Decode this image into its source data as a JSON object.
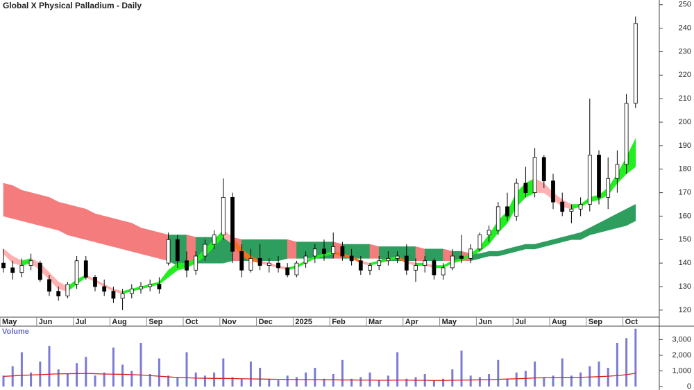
{
  "chart_data": {
    "type": "candlestick",
    "title": "Global X Physical Palladium - Daily",
    "categories": [
      "May",
      null,
      null,
      null,
      "Jun",
      null,
      null,
      null,
      "Jul",
      null,
      null,
      null,
      "Aug",
      null,
      null,
      null,
      "Sep",
      null,
      null,
      null,
      "Oct",
      null,
      null,
      null,
      "Nov",
      null,
      null,
      null,
      "Dec",
      null,
      null,
      null,
      "2025",
      null,
      null,
      null,
      "Feb",
      null,
      null,
      null,
      "Mar",
      null,
      null,
      null,
      "Apr",
      null,
      null,
      null,
      "May",
      null,
      null,
      null,
      "Jun",
      null,
      null,
      null,
      "Jul",
      null,
      null,
      null,
      "Aug",
      null,
      null,
      null,
      "Sep",
      null,
      null,
      null,
      "Oct",
      null
    ],
    "open": [
      140,
      138,
      136,
      139,
      140,
      133,
      128,
      126,
      131,
      141,
      134,
      130,
      128,
      125,
      127,
      129,
      130,
      131,
      140,
      150,
      141,
      137,
      143,
      148,
      152,
      168,
      145,
      137,
      142,
      139,
      140,
      138,
      135,
      140,
      143,
      146,
      144,
      147,
      143,
      141,
      137,
      139,
      141,
      142,
      143,
      137,
      139,
      141,
      135,
      138,
      143,
      142,
      146,
      152,
      154,
      164,
      160,
      174,
      170,
      185,
      175,
      166,
      162,
      163,
      165,
      186,
      168,
      176,
      182,
      208
    ],
    "high": [
      146,
      141,
      142,
      144,
      141,
      135,
      130,
      132,
      143,
      143,
      135,
      133,
      130,
      129,
      131,
      132,
      133,
      134,
      153,
      152,
      145,
      145,
      150,
      154,
      176,
      170,
      148,
      146,
      148,
      142,
      143,
      140,
      141,
      145,
      148,
      150,
      153,
      149,
      146,
      143,
      140,
      143,
      145,
      145,
      148,
      142,
      143,
      142,
      140,
      146,
      152,
      148,
      153,
      156,
      166,
      170,
      176,
      181,
      189,
      186,
      178,
      170,
      165,
      168,
      210,
      188,
      185,
      188,
      212,
      245
    ],
    "low": [
      136,
      133,
      134,
      137,
      132,
      126,
      124,
      125,
      129,
      133,
      128,
      126,
      123,
      120,
      125,
      127,
      128,
      127,
      139,
      138,
      134,
      135,
      141,
      146,
      150,
      140,
      134,
      136,
      137,
      136,
      136,
      134,
      134,
      138,
      140,
      141,
      142,
      141,
      139,
      135,
      135,
      137,
      139,
      140,
      135,
      132,
      136,
      133,
      133,
      137,
      140,
      140,
      145,
      149,
      152,
      158,
      158,
      168,
      168,
      172,
      163,
      160,
      157,
      160,
      162,
      165,
      163,
      170,
      178,
      206
    ],
    "close": [
      138,
      136,
      139,
      141,
      133,
      128,
      126,
      131,
      141,
      134,
      130,
      128,
      125,
      127,
      129,
      130,
      131,
      129,
      150,
      141,
      137,
      143,
      148,
      152,
      168,
      145,
      137,
      142,
      139,
      140,
      138,
      135,
      140,
      143,
      146,
      144,
      147,
      143,
      141,
      137,
      139,
      141,
      142,
      143,
      137,
      139,
      141,
      135,
      138,
      143,
      142,
      146,
      152,
      154,
      164,
      160,
      174,
      170,
      185,
      175,
      166,
      162,
      163,
      165,
      186,
      168,
      176,
      182,
      208,
      242
    ],
    "short_band_upper": [
      146,
      143,
      141,
      142,
      140,
      136,
      132,
      130,
      133,
      135,
      133,
      131,
      129,
      128,
      129,
      130,
      131,
      132,
      137,
      140,
      140,
      142,
      146,
      150,
      154,
      151,
      146,
      143,
      141,
      140,
      139,
      138,
      139,
      141,
      143,
      144,
      145,
      144,
      143,
      141,
      140,
      141,
      142,
      143,
      141,
      140,
      140,
      139,
      139,
      141,
      142,
      144,
      147,
      152,
      158,
      162,
      170,
      174,
      176,
      174,
      170,
      167,
      165,
      165,
      168,
      169,
      172,
      178,
      185,
      193
    ],
    "short_band_lower": [
      144,
      140,
      139,
      140,
      137,
      133,
      129,
      128,
      131,
      134,
      132,
      130,
      128,
      127,
      128,
      129,
      130,
      131,
      134,
      137,
      138,
      140,
      143,
      147,
      151,
      148,
      143,
      141,
      140,
      139,
      138,
      137,
      138,
      140,
      142,
      143,
      144,
      143,
      142,
      140,
      139,
      140,
      141,
      142,
      140,
      139,
      139,
      138,
      138,
      140,
      141,
      143,
      145,
      148,
      153,
      157,
      164,
      168,
      170,
      170,
      167,
      164,
      163,
      164,
      166,
      167,
      169,
      174,
      178,
      181
    ],
    "long_band_upper": [
      174,
      173,
      171,
      170,
      169,
      168,
      166,
      165,
      164,
      163,
      161,
      160,
      159,
      158,
      157,
      155,
      154,
      153,
      152,
      152,
      152,
      151,
      151,
      151,
      151,
      151,
      150,
      150,
      150,
      150,
      150,
      150,
      149,
      149,
      149,
      149,
      149,
      148,
      148,
      148,
      148,
      147,
      147,
      147,
      147,
      147,
      146,
      146,
      146,
      145,
      145,
      144,
      144,
      145,
      145,
      146,
      147,
      148,
      148,
      149,
      150,
      151,
      152,
      153,
      155,
      157,
      159,
      161,
      163,
      165
    ],
    "long_band_lower": [
      160,
      159,
      158,
      157,
      156,
      155,
      154,
      152,
      151,
      150,
      149,
      148,
      147,
      146,
      145,
      144,
      143,
      142,
      141,
      139,
      139,
      140,
      140,
      140,
      140,
      141,
      141,
      141,
      141,
      141,
      141,
      142,
      142,
      142,
      142,
      142,
      142,
      142,
      142,
      142,
      142,
      142,
      141,
      141,
      141,
      141,
      141,
      141,
      141,
      141,
      141,
      141,
      142,
      143,
      143,
      144,
      145,
      146,
      146,
      147,
      148,
      149,
      150,
      150,
      152,
      153,
      154,
      155,
      156,
      158
    ],
    "volume": [
      700,
      1300,
      2200,
      900,
      1600,
      2600,
      1100,
      800,
      1500,
      1900,
      700,
      900,
      2500,
      1400,
      1000,
      2800,
      800,
      1800,
      700,
      600,
      2200,
      900,
      700,
      900,
      1800,
      600,
      500,
      1600,
      1200,
      500,
      400,
      700,
      600,
      900,
      1200,
      500,
      800,
      1700,
      500,
      600,
      900,
      400,
      700,
      2200,
      500,
      600,
      800,
      400,
      500,
      1100,
      2300,
      700,
      600,
      800,
      1700,
      500,
      900,
      1000,
      1600,
      600,
      700,
      1800,
      700,
      900,
      1300,
      1600,
      1200,
      2800,
      3100,
      3700
    ],
    "volume_ma": [
      650,
      680,
      720,
      740,
      760,
      790,
      810,
      820,
      830,
      840,
      820,
      800,
      790,
      780,
      760,
      740,
      700,
      660,
      620,
      580,
      560,
      540,
      530,
      520,
      520,
      510,
      500,
      490,
      480,
      470,
      460,
      450,
      450,
      440,
      440,
      430,
      430,
      420,
      420,
      410,
      410,
      400,
      400,
      410,
      410,
      400,
      400,
      390,
      390,
      400,
      410,
      420,
      430,
      440,
      460,
      480,
      500,
      520,
      550,
      560,
      560,
      570,
      580,
      590,
      610,
      630,
      660,
      700,
      760,
      850
    ],
    "up_color": "#ffffff",
    "down_color": "#000000",
    "short_rising_color": "#22ee22",
    "short_falling_color": "#ffb0b0",
    "short_inside_color": "#f7701e",
    "long_falling_color": "#f47c7c",
    "long_rising_color": "#2e9e5e",
    "volume_color": "#7b7bd6",
    "volume_ma_color": "#d42020",
    "ylim": [
      117,
      252
    ],
    "yticks": [
      120,
      130,
      140,
      150,
      160,
      170,
      180,
      190,
      200,
      210,
      220,
      230,
      240,
      250
    ],
    "volume_label": "Volume",
    "y2lim": [
      0,
      4000
    ],
    "y2ticks": [
      0,
      {
        "value": 1000,
        "label": "1,000"
      },
      {
        "value": 2000,
        "label": "2,000"
      },
      {
        "value": 3000,
        "label": "3,000"
      }
    ]
  }
}
